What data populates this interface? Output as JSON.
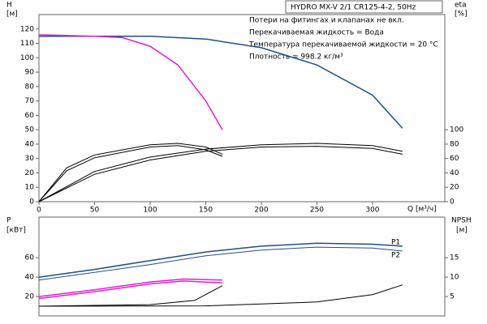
{
  "chart_data": [
    {
      "type": "line",
      "title": "HYDRO MX-V 2/1 CR125-4-2, 50Hz",
      "annotations": [
        "Потери на фитингах и клапанах не вкл.",
        "Перекачиваемая жидкость = Вода",
        "Температура перекачиваемой жидкости = 20 °C",
        "Плотность = 998.2 кг/м³"
      ],
      "ylabel": "H",
      "ylabel_unit": "[м]",
      "y2label": "eta",
      "y2label_unit": "[%]",
      "xlabel": "Q [м³/ч]",
      "xlim": [
        0,
        365
      ],
      "xticks": [
        0,
        50,
        100,
        150,
        200,
        250,
        300
      ],
      "ylim": [
        0,
        130
      ],
      "yticks": [
        0,
        10,
        20,
        30,
        40,
        50,
        60,
        70,
        80,
        90,
        100,
        110,
        120
      ],
      "y2lim": [
        0,
        260
      ],
      "y2ticks": [
        0,
        20,
        40,
        60,
        80,
        100
      ],
      "series": [
        {
          "color": "#1f4e8c",
          "x": [
            0,
            50,
            100,
            150,
            200,
            250,
            300,
            327
          ],
          "values": [
            115,
            115,
            115,
            113,
            107,
            95,
            74,
            51
          ]
        },
        {
          "color": "#e020d0",
          "x": [
            0,
            50,
            75,
            100,
            125,
            150,
            165
          ],
          "values": [
            116,
            115,
            114,
            108,
            95,
            70,
            50
          ]
        },
        {
          "color": "#000000",
          "axis": "y2",
          "x": [
            0,
            50,
            100,
            150,
            200,
            250,
            300,
            327
          ],
          "values": [
            0,
            42,
            62,
            73,
            79,
            81,
            78,
            70
          ]
        },
        {
          "color": "#000000",
          "axis": "y2",
          "x": [
            0,
            50,
            100,
            150,
            200,
            250,
            300,
            327
          ],
          "values": [
            0,
            38,
            58,
            70,
            76,
            77,
            74,
            66
          ]
        },
        {
          "color": "#000000",
          "axis": "y2",
          "x": [
            0,
            25,
            50,
            100,
            125,
            150,
            165
          ],
          "values": [
            0,
            47,
            65,
            79,
            81,
            76,
            66
          ]
        },
        {
          "color": "#000000",
          "axis": "y2",
          "x": [
            0,
            25,
            50,
            100,
            125,
            150,
            165
          ],
          "values": [
            0,
            43,
            61,
            76,
            78,
            72,
            63
          ]
        }
      ]
    },
    {
      "type": "line",
      "ylabel": "P",
      "ylabel_unit": "[кВт]",
      "y2label": "NPSH",
      "y2label_unit": "[м]",
      "xlim": [
        0,
        365
      ],
      "ylim": [
        0,
        102
      ],
      "yticks": [
        20,
        40,
        60
      ],
      "y2lim": [
        0,
        25.5
      ],
      "y2ticks": [
        5,
        10,
        15
      ],
      "series": [
        {
          "name": "P1",
          "color": "#1f4e8c",
          "x": [
            0,
            50,
            100,
            150,
            200,
            250,
            300,
            327
          ],
          "values": [
            40,
            48,
            57,
            66,
            72,
            75,
            74,
            72
          ]
        },
        {
          "name": "P2",
          "color": "#1f4e8c",
          "x": [
            0,
            50,
            100,
            150,
            200,
            250,
            300,
            327
          ],
          "values": [
            37,
            45,
            53,
            62,
            68,
            71,
            70,
            67
          ]
        },
        {
          "color": "#e020d0",
          "x": [
            0,
            50,
            100,
            130,
            165
          ],
          "values": [
            20,
            27,
            35,
            38,
            37
          ]
        },
        {
          "color": "#e020d0",
          "x": [
            0,
            50,
            100,
            130,
            165
          ],
          "values": [
            18,
            25,
            33,
            36,
            34
          ]
        },
        {
          "color": "#000000",
          "axis": "y2",
          "x": [
            0,
            100,
            140,
            165
          ],
          "values": [
            2.5,
            2.9,
            4,
            7.8
          ]
        },
        {
          "color": "#000000",
          "axis": "y2",
          "x": [
            0,
            150,
            250,
            300,
            327
          ],
          "values": [
            2.5,
            2.6,
            3.6,
            5.5,
            8
          ]
        }
      ]
    }
  ]
}
